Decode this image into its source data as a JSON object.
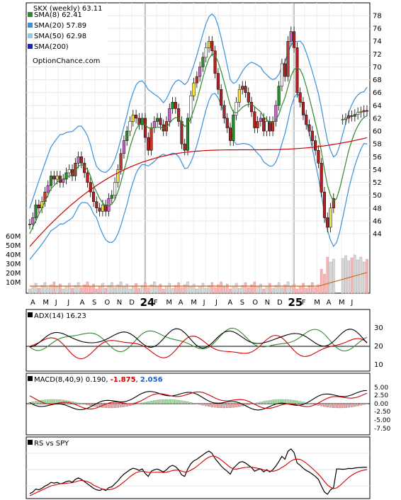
{
  "chart_data": {
    "type": "candlestick",
    "ticker_label": "SKX (weekly)",
    "last_price": "63.11",
    "watermark": "OptionChance.com",
    "legend": [
      {
        "label": "SMA(8)",
        "value": "62.41",
        "color": "#2e8b2e"
      },
      {
        "label": "SMA(20)",
        "value": "57.89",
        "color": "#3b8fd9"
      },
      {
        "label": "SMA(50)",
        "value": "62.98",
        "color": "#8ec9f0"
      },
      {
        "label": "SMA(200)",
        "value": "",
        "color": "#2020c0"
      }
    ],
    "price_axis": {
      "ylim": [
        42,
        79
      ],
      "ticks": [
        "78",
        "76",
        "74",
        "72",
        "70",
        "68",
        "66",
        "64",
        "62",
        "60",
        "58",
        "56",
        "54",
        "52",
        "50",
        "48",
        "46",
        "44"
      ]
    },
    "volume_axis": {
      "labels": [
        "60M",
        "50M",
        "40M",
        "30M",
        "20M",
        "10M"
      ]
    },
    "x_month_labels": [
      "A",
      "M",
      "J",
      "J",
      "A",
      "S",
      "O",
      "N",
      "D",
      "24",
      "F",
      "M",
      "A",
      "M",
      "J",
      "J",
      "A",
      "S",
      "O",
      "N",
      "D",
      "25",
      "F",
      "M",
      "A",
      "M",
      "J"
    ],
    "close": [
      45.5,
      46.5,
      48.5,
      48.0,
      49.0,
      50.5,
      51.5,
      53.0,
      52.5,
      53.0,
      52.0,
      52.5,
      53.5,
      54.0,
      53.0,
      55.0,
      56.0,
      55.0,
      53.5,
      52.0,
      50.5,
      49.0,
      48.0,
      47.5,
      48.5,
      47.5,
      49.5,
      50.0,
      52.0,
      54.0,
      56.5,
      58.5,
      60.0,
      61.5,
      62.5,
      62.0,
      61.0,
      62.0,
      59.0,
      57.0,
      60.5,
      61.5,
      62.0,
      61.0,
      60.0,
      61.5,
      63.5,
      64.5,
      63.5,
      61.5,
      58.0,
      57.0,
      62.0,
      65.5,
      67.5,
      68.5,
      70.0,
      71.5,
      73.0,
      74.0,
      72.5,
      69.0,
      66.5,
      64.0,
      62.0,
      60.5,
      58.5,
      62.5,
      64.5,
      66.5,
      67.0,
      66.0,
      64.5,
      63.0,
      60.5,
      61.5,
      62.0,
      60.0,
      61.5,
      60.0,
      61.5,
      64.0,
      67.0,
      70.5,
      68.5,
      74.0,
      75.5,
      73.0,
      66.0,
      64.5,
      62.5,
      61.0,
      60.0,
      58.5,
      57.0,
      55.0,
      50.5,
      46.5,
      45.0,
      48.0,
      49.5,
      null,
      null,
      61.8,
      62.0,
      62.4,
      62.3,
      62.6,
      62.9,
      63.0,
      63.2,
      63.1
    ],
    "sma8": [
      44.0,
      45.0,
      46.0,
      47.0,
      48.0,
      49.0,
      50.0,
      51.0,
      51.5,
      52.0,
      52.5,
      52.5,
      52.8,
      53.0,
      53.2,
      53.8,
      54.5,
      54.8,
      54.5,
      54.0,
      53.0,
      51.5,
      50.5,
      49.5,
      48.8,
      48.3,
      48.3,
      48.6,
      49.3,
      50.5,
      52.0,
      53.8,
      55.5,
      57.5,
      59.0,
      60.3,
      61.0,
      61.3,
      61.0,
      60.5,
      60.5,
      60.5,
      60.6,
      60.6,
      60.4,
      60.6,
      61.2,
      61.8,
      62.1,
      62.0,
      61.4,
      60.7,
      61.0,
      62.0,
      63.3,
      64.8,
      66.5,
      68.3,
      70.0,
      71.3,
      72.0,
      71.8,
      70.8,
      69.3,
      67.6,
      65.8,
      64.0,
      63.0,
      62.8,
      63.2,
      63.7,
      64.0,
      64.2,
      64.2,
      63.8,
      63.4,
      63.0,
      62.2,
      61.8,
      61.4,
      61.3,
      61.7,
      62.6,
      64.0,
      65.2,
      66.9,
      68.6,
      69.6,
      69.9,
      69.6,
      68.6,
      67.0,
      65.2,
      63.3,
      61.3,
      59.3,
      56.8,
      54.0,
      51.5,
      50.0,
      49.0,
      49.5,
      51.0,
      53.0,
      55.0,
      57.0,
      58.5,
      59.8,
      60.8,
      61.6,
      62.1,
      62.41
    ]
  }
}
